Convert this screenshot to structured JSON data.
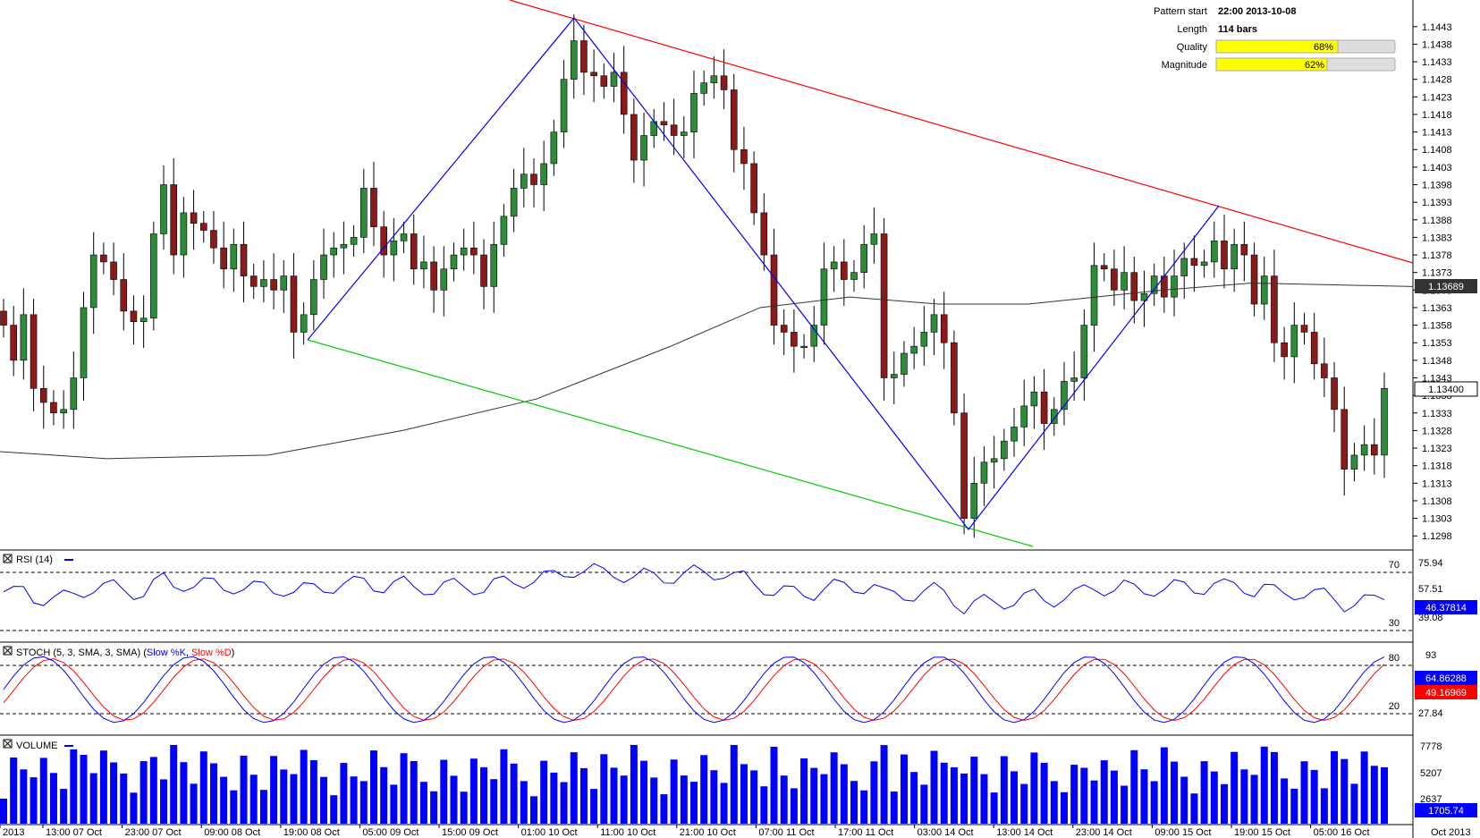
{
  "pattern_info": {
    "pattern_start_label": "Pattern start",
    "pattern_start_value": "22:00 2013-10-08",
    "length_label": "Length",
    "length_value": "114 bars",
    "quality_label": "Quality",
    "quality_value": "68%",
    "quality_pct": 68,
    "magnitude_label": "Magnitude",
    "magnitude_value": "62%",
    "magnitude_pct": 62
  },
  "panels": {
    "rsi": {
      "title": "RSI (14)",
      "level_high": "70",
      "level_low": "30",
      "axis_top": "75.94",
      "axis_mid": "57.51",
      "axis_low": "39.08",
      "current": "46.37814"
    },
    "stoch": {
      "title": "STOCH (5, 3, SMA, 3, SMA) (",
      "k_label": "Slow %K",
      "sep": ", ",
      "d_label": "Slow %D",
      "close": ")",
      "level_high": "80",
      "level_low": "20",
      "axis_top": "93",
      "axis_low": "27.84",
      "current_k": "64.86288",
      "current_d": "49.16969"
    },
    "volume": {
      "title": "VOLUME",
      "axis_top": "7778",
      "axis_mid": "5207",
      "axis_low": "2637",
      "current": "1705.74"
    }
  },
  "x_axis": {
    "labels": [
      "2013",
      "13:00 07 Oct",
      "23:00 07 Oct",
      "09:00 08 Oct",
      "19:00 08 Oct",
      "05:00 09 Oct",
      "15:00 09 Oct",
      "01:00 10 Oct",
      "11:00 10 Oct",
      "21:00 10 Oct",
      "07:00 11 Oct",
      "17:00 11 Oct",
      "03:00 14 Oct",
      "13:00 14 Oct",
      "23:00 14 Oct",
      "09:00 15 Oct",
      "19:00 15 Oct",
      "05:00 16 Oct"
    ],
    "right_label": "Oct 2013"
  },
  "chart_data": {
    "type": "candlestick",
    "y_ticks": [
      "1.1443",
      "1.1438",
      "1.1433",
      "1.1428",
      "1.1423",
      "1.1418",
      "1.1413",
      "1.1408",
      "1.1403",
      "1.1398",
      "1.1393",
      "1.1388",
      "1.1383",
      "1.1378",
      "1.1373",
      "1.1368",
      "1.1363",
      "1.1358",
      "1.1353",
      "1.1348",
      "1.1343",
      "1.1338",
      "1.1333",
      "1.1328",
      "1.1323",
      "1.1318",
      "1.1313",
      "1.1308",
      "1.1303",
      "1.1298"
    ],
    "ylim": [
      1.1295,
      1.1446
    ],
    "current_price": "1.13400",
    "current_ma": "1.13689",
    "colors": {
      "bull": "#2e8b3a",
      "bear": "#8b1a1a",
      "resistance": "#ff0000",
      "support": "#00cc00",
      "zigzag": "#0000ff",
      "ma": "#333333",
      "rsi": "#0000ff",
      "stoch_k": "#0000ff",
      "stoch_d": "#ff0000",
      "volume": "#0000ff",
      "quality_bar": "#ffff00"
    },
    "closes": [
      1.1358,
      1.1348,
      1.1361,
      1.134,
      1.1336,
      1.1333,
      1.1334,
      1.1343,
      1.1363,
      1.1378,
      1.1376,
      1.1371,
      1.1362,
      1.1359,
      1.136,
      1.1384,
      1.1398,
      1.1378,
      1.139,
      1.1387,
      1.1385,
      1.138,
      1.1374,
      1.1381,
      1.1372,
      1.1369,
      1.1371,
      1.1368,
      1.1372,
      1.1356,
      1.1361,
      1.1371,
      1.1378,
      1.138,
      1.1381,
      1.1383,
      1.1397,
      1.1386,
      1.1378,
      1.1382,
      1.1384,
      1.1374,
      1.1376,
      1.1368,
      1.1374,
      1.1378,
      1.138,
      1.1378,
      1.1369,
      1.1381,
      1.1389,
      1.1397,
      1.1401,
      1.1398,
      1.1404,
      1.1413,
      1.1428,
      1.1439,
      1.143,
      1.1429,
      1.1426,
      1.143,
      1.1418,
      1.1405,
      1.1412,
      1.1416,
      1.1415,
      1.1412,
      1.1413,
      1.1424,
      1.1427,
      1.1429,
      1.1425,
      1.1408,
      1.1404,
      1.139,
      1.1378,
      1.1358,
      1.1356,
      1.1352,
      1.1352,
      1.1358,
      1.1374,
      1.1376,
      1.1371,
      1.1373,
      1.1381,
      1.1384,
      1.1343,
      1.1344,
      1.135,
      1.1352,
      1.1356,
      1.1361,
      1.1353,
      1.1333,
      1.1303,
      1.1313,
      1.1319,
      1.132,
      1.1325,
      1.1329,
      1.1335,
      1.1339,
      1.133,
      1.1334,
      1.1342,
      1.1343,
      1.1358,
      1.1375,
      1.1374,
      1.1368,
      1.1373,
      1.1365,
      1.1367,
      1.1372,
      1.1366,
      1.1372,
      1.1377,
      1.1375,
      1.1376,
      1.1382,
      1.1374,
      1.1381,
      1.1378,
      1.1364,
      1.1372,
      1.1353,
      1.1349,
      1.1358,
      1.1356,
      1.1347,
      1.1343,
      1.1334,
      1.1317,
      1.1321,
      1.1324,
      1.1321,
      1.134
    ]
  }
}
